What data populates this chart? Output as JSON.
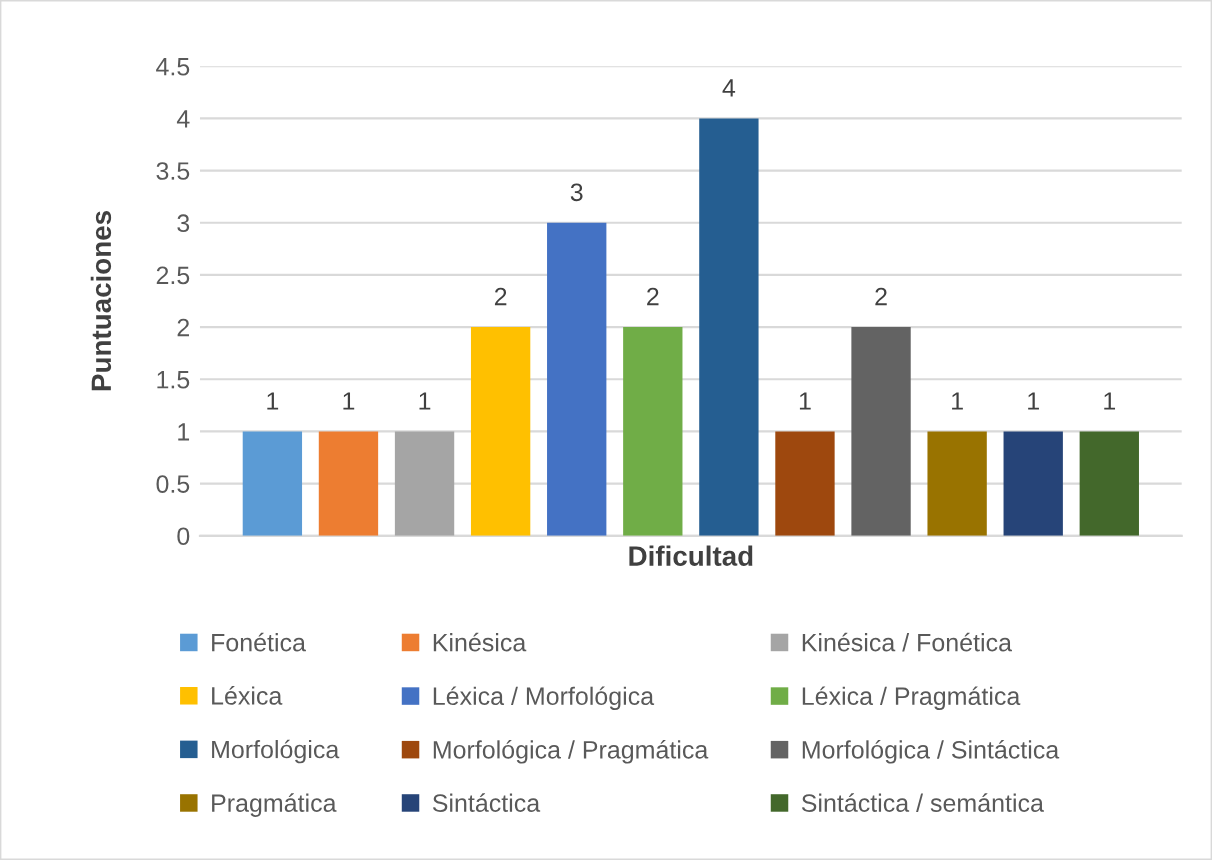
{
  "chart_data": {
    "type": "bar",
    "xlabel": "Dificultad",
    "ylabel": "Puntuaciones",
    "categories": [
      null
    ],
    "series": [
      {
        "name": "Fonética",
        "color": "#5b9bd5",
        "values": [
          1
        ]
      },
      {
        "name": "Kinésica",
        "color": "#ed7d31",
        "values": [
          1
        ]
      },
      {
        "name": "Kinésica / Fonética",
        "color": "#a5a5a5",
        "values": [
          1
        ]
      },
      {
        "name": "Léxica",
        "color": "#ffc000",
        "values": [
          2
        ]
      },
      {
        "name": "Léxica / Morfológica",
        "color": "#4472c4",
        "values": [
          3
        ]
      },
      {
        "name": "Léxica / Pragmática",
        "color": "#70ad47",
        "values": [
          2
        ]
      },
      {
        "name": "Morfológica",
        "color": "#255e91",
        "values": [
          4
        ]
      },
      {
        "name": "Morfológica / Pragmática",
        "color": "#9e480e",
        "values": [
          1
        ]
      },
      {
        "name": "Morfológica / Sintáctica",
        "color": "#636363",
        "values": [
          2
        ]
      },
      {
        "name": "Pragmática",
        "color": "#997300",
        "values": [
          1
        ]
      },
      {
        "name": "Sintáctica",
        "color": "#264478",
        "values": [
          1
        ]
      },
      {
        "name": "Sintáctica / semántica",
        "color": "#43682b",
        "values": [
          1
        ]
      }
    ],
    "ylim": [
      0,
      4.5
    ],
    "yticks": [
      0,
      0.5,
      1,
      1.5,
      2,
      2.5,
      3,
      3.5,
      4,
      4.5
    ],
    "grid": "y",
    "legend": "bottom",
    "data_labels": true
  }
}
